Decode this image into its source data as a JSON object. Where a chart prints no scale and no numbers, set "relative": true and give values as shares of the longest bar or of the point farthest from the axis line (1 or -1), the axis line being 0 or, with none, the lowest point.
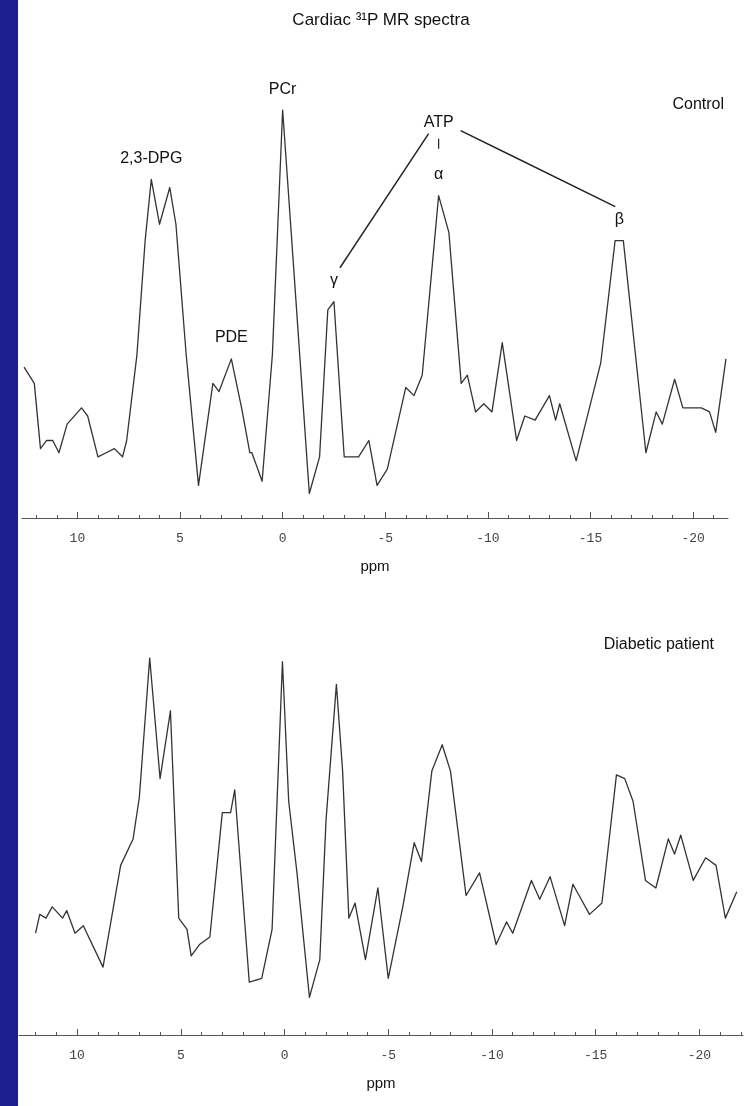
{
  "chart_data": [
    {
      "type": "line",
      "title": "Cardiac ³¹P MR spectra",
      "xlabel": "ppm",
      "relative": true,
      "marker": "none",
      "line_style": "solid",
      "xlim": [
        12.7,
        -21.7
      ],
      "xticks": [
        10,
        5,
        0,
        -5,
        -10,
        -15,
        -20
      ],
      "annotations": [
        {
          "text": "2,3-DPG",
          "x": 6.4,
          "y": 0.83
        },
        {
          "text": "PDE",
          "x": 2.5,
          "y": 0.39
        },
        {
          "text": "PCr",
          "x": 0,
          "y": 1
        },
        {
          "text": "γ",
          "x": -2.5,
          "y": 0.53
        },
        {
          "text": "α",
          "x": -7.6,
          "y": 0.79
        },
        "ATP",
        {
          "text": "β",
          "x": -16.4,
          "y": 0.68
        },
        "Control"
      ],
      "series": [
        {
          "color": "#333333",
          "x": [
            12.6,
            12.1,
            11.8,
            11.5,
            11.2,
            10.9,
            10.5,
            9.8,
            9.5,
            9.0,
            8.6,
            8.2,
            7.8,
            7.6,
            7.1,
            6.7,
            6.4,
            6.0,
            5.5,
            5.2,
            4.7,
            4.1,
            3.4,
            3.1,
            2.5,
            2.0,
            1.6,
            1.5,
            1.0,
            0.5,
            0.0,
            -0.5,
            -1.3,
            -1.8,
            -2.2,
            -2.5,
            -3.0,
            -3.7,
            -4.2,
            -4.6,
            -5.1,
            -6.0,
            -6.4,
            -6.8,
            -7.6,
            -8.1,
            -8.7,
            -9.0,
            -9.4,
            -9.8,
            -10.2,
            -10.7,
            -11.4,
            -11.8,
            -12.3,
            -13.0,
            -13.3,
            -13.5,
            -14.3,
            -15.5,
            -16.2,
            -16.6,
            -17.7,
            -18.2,
            -18.5,
            -19.1,
            -19.5,
            -20.4,
            -20.8,
            -21.1,
            -21.6
          ],
          "values": [
            0.37,
            0.33,
            0.17,
            0.19,
            0.19,
            0.16,
            0.23,
            0.27,
            0.25,
            0.15,
            0.16,
            0.17,
            0.15,
            0.19,
            0.4,
            0.68,
            0.83,
            0.72,
            0.81,
            0.72,
            0.4,
            0.08,
            0.33,
            0.31,
            0.39,
            0.27,
            0.16,
            0.16,
            0.09,
            0.4,
            1.0,
            0.64,
            0.06,
            0.15,
            0.51,
            0.53,
            0.15,
            0.15,
            0.19,
            0.08,
            0.12,
            0.32,
            0.3,
            0.35,
            0.79,
            0.7,
            0.33,
            0.35,
            0.26,
            0.28,
            0.26,
            0.43,
            0.19,
            0.25,
            0.24,
            0.3,
            0.24,
            0.28,
            0.14,
            0.38,
            0.68,
            0.68,
            0.16,
            0.26,
            0.23,
            0.34,
            0.27,
            0.27,
            0.26,
            0.21,
            0.39
          ]
        }
      ]
    },
    {
      "type": "line",
      "xlabel": "ppm",
      "relative": true,
      "marker": "none",
      "line_style": "solid",
      "xlim": [
        12.8,
        -22.1
      ],
      "xticks": [
        10,
        5,
        0,
        -5,
        -10,
        -15,
        -20
      ],
      "annotations": [
        "Diabetic patient"
      ],
      "series": [
        {
          "color": "#333333",
          "x": [
            12.0,
            11.8,
            11.5,
            11.2,
            10.7,
            10.5,
            10.1,
            9.7,
            8.75,
            7.9,
            7.3,
            7.0,
            6.5,
            6.0,
            5.5,
            5.1,
            4.7,
            4.5,
            4.1,
            3.6,
            3.0,
            2.6,
            2.4,
            1.7,
            1.1,
            0.6,
            0.1,
            -0.2,
            -0.6,
            -1.2,
            -1.7,
            -2.0,
            -2.5,
            -2.8,
            -3.1,
            -3.4,
            -3.9,
            -4.5,
            -5.0,
            -5.7,
            -6.25,
            -6.6,
            -7.1,
            -7.6,
            -8.0,
            -8.75,
            -9.4,
            -10.2,
            -10.7,
            -11.0,
            -11.9,
            -12.3,
            -12.8,
            -13.5,
            -13.9,
            -14.3,
            -14.7,
            -15.3,
            -16.0,
            -16.4,
            -16.8,
            -17.4,
            -17.9,
            -18.5,
            -18.8,
            -19.1,
            -19.7,
            -20.3,
            -20.8,
            -21.25,
            -21.8
          ],
          "values": [
            0.27,
            0.32,
            0.31,
            0.34,
            0.31,
            0.33,
            0.27,
            0.29,
            0.18,
            0.45,
            0.52,
            0.63,
            1.0,
            0.68,
            0.86,
            0.31,
            0.28,
            0.21,
            0.24,
            0.26,
            0.59,
            0.59,
            0.65,
            0.14,
            0.15,
            0.28,
            0.99,
            0.62,
            0.43,
            0.1,
            0.2,
            0.57,
            0.93,
            0.7,
            0.31,
            0.35,
            0.2,
            0.39,
            0.15,
            0.34,
            0.51,
            0.46,
            0.7,
            0.77,
            0.7,
            0.37,
            0.43,
            0.24,
            0.3,
            0.27,
            0.41,
            0.36,
            0.42,
            0.29,
            0.4,
            0.36,
            0.32,
            0.35,
            0.69,
            0.68,
            0.62,
            0.41,
            0.39,
            0.52,
            0.48,
            0.53,
            0.41,
            0.47,
            0.45,
            0.31,
            0.38
          ]
        }
      ]
    }
  ]
}
